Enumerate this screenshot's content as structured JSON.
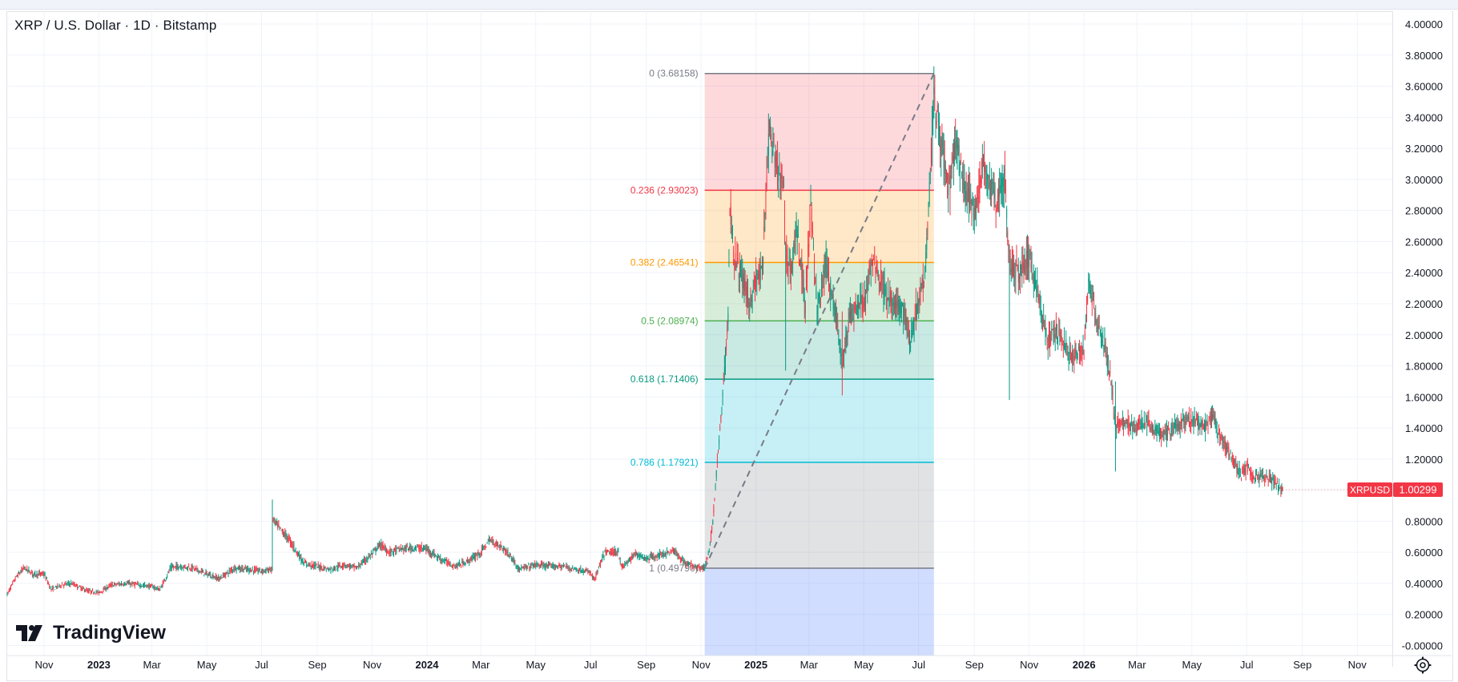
{
  "header": {
    "title": "XRP / U.S. Dollar · 1D · Bitstamp"
  },
  "brand": {
    "name": "TradingView"
  },
  "price_label": {
    "symbol": "XRPUSD",
    "value": "1.00299",
    "color": "#f23645"
  },
  "colors": {
    "up": "#089981",
    "down": "#f23645"
  },
  "chart_data": {
    "type": "line",
    "title": "XRP / U.S. Dollar · 1D · Bitstamp",
    "y_axis": {
      "position": "right",
      "ylim": [
        -0.02,
        4.0
      ],
      "ticks": [
        "4.00000",
        "3.80000",
        "3.60000",
        "3.40000",
        "3.20000",
        "3.00000",
        "2.80000",
        "2.60000",
        "2.40000",
        "2.20000",
        "2.00000",
        "1.80000",
        "1.60000",
        "1.40000",
        "1.20000",
        "1.00000",
        "0.80000",
        "0.60000",
        "0.40000",
        "0.20000",
        "-0.00000"
      ],
      "tick_values": [
        4.0,
        3.8,
        3.6,
        3.4,
        3.2,
        3.0,
        2.8,
        2.6,
        2.4,
        2.2,
        2.0,
        1.8,
        1.6,
        1.4,
        1.2,
        1.0,
        0.8,
        0.6,
        0.4,
        0.2,
        0.0
      ]
    },
    "x_axis": {
      "range": [
        "2022-09-21",
        "2026-12-10"
      ],
      "ticks": [
        {
          "label": "Nov",
          "date": "2022-11-01",
          "bold": false
        },
        {
          "label": "2023",
          "date": "2023-01-01",
          "bold": true
        },
        {
          "label": "Mar",
          "date": "2023-03-01",
          "bold": false
        },
        {
          "label": "May",
          "date": "2023-05-01",
          "bold": false
        },
        {
          "label": "Jul",
          "date": "2023-07-01",
          "bold": false
        },
        {
          "label": "Sep",
          "date": "2023-09-01",
          "bold": false
        },
        {
          "label": "Nov",
          "date": "2023-11-01",
          "bold": false
        },
        {
          "label": "2024",
          "date": "2024-01-01",
          "bold": true
        },
        {
          "label": "Mar",
          "date": "2024-03-01",
          "bold": false
        },
        {
          "label": "May",
          "date": "2024-05-01",
          "bold": false
        },
        {
          "label": "Jul",
          "date": "2024-07-01",
          "bold": false
        },
        {
          "label": "Sep",
          "date": "2024-09-01",
          "bold": false
        },
        {
          "label": "Nov",
          "date": "2024-11-01",
          "bold": false
        },
        {
          "label": "2025",
          "date": "2025-01-01",
          "bold": true
        },
        {
          "label": "Mar",
          "date": "2025-03-01",
          "bold": false
        },
        {
          "label": "May",
          "date": "2025-05-01",
          "bold": false
        },
        {
          "label": "Jul",
          "date": "2025-07-01",
          "bold": false
        },
        {
          "label": "Sep",
          "date": "2025-09-01",
          "bold": false
        },
        {
          "label": "Nov",
          "date": "2025-11-01",
          "bold": false
        },
        {
          "label": "2026",
          "date": "2026-01-01",
          "bold": true
        },
        {
          "label": "Mar",
          "date": "2026-03-01",
          "bold": false
        },
        {
          "label": "May",
          "date": "2026-05-01",
          "bold": false
        },
        {
          "label": "Jul",
          "date": "2026-07-01",
          "bold": false
        },
        {
          "label": "Sep",
          "date": "2026-09-01",
          "bold": false
        },
        {
          "label": "Nov",
          "date": "2026-11-01",
          "bold": false
        }
      ]
    },
    "grid": true,
    "series": [
      {
        "style": "candlestick-approximation",
        "points": [
          [
            "2022-09-21",
            0.33
          ],
          [
            "2022-10-01",
            0.44
          ],
          [
            "2022-10-10",
            0.5
          ],
          [
            "2022-10-20",
            0.46
          ],
          [
            "2022-11-01",
            0.46
          ],
          [
            "2022-11-09",
            0.36
          ],
          [
            "2022-11-20",
            0.39
          ],
          [
            "2022-12-01",
            0.4
          ],
          [
            "2022-12-20",
            0.35
          ],
          [
            "2023-01-01",
            0.34
          ],
          [
            "2023-01-15",
            0.39
          ],
          [
            "2023-02-01",
            0.4
          ],
          [
            "2023-02-15",
            0.39
          ],
          [
            "2023-03-01",
            0.38
          ],
          [
            "2023-03-10",
            0.36
          ],
          [
            "2023-03-22",
            0.5
          ],
          [
            "2023-04-01",
            0.51
          ],
          [
            "2023-04-15",
            0.5
          ],
          [
            "2023-05-01",
            0.46
          ],
          [
            "2023-05-15",
            0.43
          ],
          [
            "2023-06-01",
            0.5
          ],
          [
            "2023-06-15",
            0.49
          ],
          [
            "2023-07-01",
            0.48
          ],
          [
            "2023-07-12",
            0.49
          ],
          [
            "2023-07-13",
            0.82
          ],
          [
            "2023-07-20",
            0.76
          ],
          [
            "2023-08-01",
            0.68
          ],
          [
            "2023-08-17",
            0.53
          ],
          [
            "2023-09-01",
            0.51
          ],
          [
            "2023-09-15",
            0.49
          ],
          [
            "2023-10-01",
            0.52
          ],
          [
            "2023-10-15",
            0.5
          ],
          [
            "2023-11-01",
            0.59
          ],
          [
            "2023-11-10",
            0.65
          ],
          [
            "2023-11-20",
            0.6
          ],
          [
            "2023-12-01",
            0.62
          ],
          [
            "2023-12-20",
            0.63
          ],
          [
            "2024-01-01",
            0.62
          ],
          [
            "2024-01-15",
            0.56
          ],
          [
            "2024-02-01",
            0.51
          ],
          [
            "2024-02-15",
            0.54
          ],
          [
            "2024-03-01",
            0.6
          ],
          [
            "2024-03-11",
            0.68
          ],
          [
            "2024-03-25",
            0.63
          ],
          [
            "2024-04-01",
            0.59
          ],
          [
            "2024-04-13",
            0.49
          ],
          [
            "2024-05-01",
            0.52
          ],
          [
            "2024-05-15",
            0.51
          ],
          [
            "2024-06-01",
            0.51
          ],
          [
            "2024-06-15",
            0.49
          ],
          [
            "2024-07-01",
            0.47
          ],
          [
            "2024-07-05",
            0.42
          ],
          [
            "2024-07-17",
            0.6
          ],
          [
            "2024-08-01",
            0.6
          ],
          [
            "2024-08-05",
            0.5
          ],
          [
            "2024-08-20",
            0.59
          ],
          [
            "2024-09-01",
            0.56
          ],
          [
            "2024-09-15",
            0.58
          ],
          [
            "2024-10-01",
            0.61
          ],
          [
            "2024-10-15",
            0.53
          ],
          [
            "2024-11-01",
            0.5
          ],
          [
            "2024-11-05",
            0.5
          ],
          [
            "2024-11-10",
            0.6
          ],
          [
            "2024-11-14",
            0.8
          ],
          [
            "2024-11-18",
            1.1
          ],
          [
            "2024-11-23",
            1.45
          ],
          [
            "2024-12-01",
            2.1
          ],
          [
            "2024-12-03",
            2.85
          ],
          [
            "2024-12-08",
            2.5
          ],
          [
            "2024-12-15",
            2.4
          ],
          [
            "2024-12-25",
            2.2
          ],
          [
            "2025-01-01",
            2.35
          ],
          [
            "2025-01-08",
            2.4
          ],
          [
            "2025-01-16",
            3.35
          ],
          [
            "2025-01-22",
            3.1
          ],
          [
            "2025-02-01",
            2.95
          ],
          [
            "2025-02-03",
            2.5
          ],
          [
            "2025-02-10",
            2.45
          ],
          [
            "2025-02-15",
            2.7
          ],
          [
            "2025-02-25",
            2.2
          ],
          [
            "2025-03-03",
            2.85
          ],
          [
            "2025-03-10",
            2.15
          ],
          [
            "2025-03-20",
            2.45
          ],
          [
            "2025-04-01",
            2.1
          ],
          [
            "2025-04-07",
            1.8
          ],
          [
            "2025-04-15",
            2.1
          ],
          [
            "2025-04-25",
            2.2
          ],
          [
            "2025-05-01",
            2.2
          ],
          [
            "2025-05-12",
            2.5
          ],
          [
            "2025-05-20",
            2.35
          ],
          [
            "2025-06-01",
            2.2
          ],
          [
            "2025-06-15",
            2.15
          ],
          [
            "2025-06-22",
            1.95
          ],
          [
            "2025-07-01",
            2.25
          ],
          [
            "2025-07-07",
            2.35
          ],
          [
            "2025-07-12",
            2.8
          ],
          [
            "2025-07-18",
            3.55
          ],
          [
            "2025-07-22",
            3.4
          ],
          [
            "2025-08-01",
            3.0
          ],
          [
            "2025-08-05",
            2.95
          ],
          [
            "2025-08-12",
            3.25
          ],
          [
            "2025-08-20",
            2.95
          ],
          [
            "2025-09-01",
            2.8
          ],
          [
            "2025-09-12",
            3.1
          ],
          [
            "2025-09-25",
            2.85
          ],
          [
            "2025-10-05",
            3.0
          ],
          [
            "2025-10-10",
            2.45
          ],
          [
            "2025-10-20",
            2.4
          ],
          [
            "2025-11-01",
            2.5
          ],
          [
            "2025-11-10",
            2.3
          ],
          [
            "2025-11-21",
            1.95
          ],
          [
            "2025-12-01",
            2.05
          ],
          [
            "2025-12-18",
            1.85
          ],
          [
            "2026-01-01",
            1.9
          ],
          [
            "2026-01-06",
            2.35
          ],
          [
            "2026-01-15",
            2.1
          ],
          [
            "2026-01-25",
            1.9
          ],
          [
            "2026-02-01",
            1.65
          ],
          [
            "2026-02-05",
            1.4
          ],
          [
            "2026-02-15",
            1.45
          ],
          [
            "2026-03-01",
            1.4
          ],
          [
            "2026-03-10",
            1.45
          ],
          [
            "2026-03-20",
            1.38
          ],
          [
            "2026-04-01",
            1.35
          ],
          [
            "2026-04-15",
            1.42
          ],
          [
            "2026-05-01",
            1.45
          ],
          [
            "2026-05-15",
            1.4
          ],
          [
            "2026-05-25",
            1.48
          ],
          [
            "2026-06-01",
            1.35
          ],
          [
            "2026-06-15",
            1.2
          ],
          [
            "2026-06-25",
            1.1
          ],
          [
            "2026-07-01",
            1.15
          ],
          [
            "2026-07-10",
            1.07
          ],
          [
            "2026-07-20",
            1.1
          ],
          [
            "2026-08-01",
            1.05
          ],
          [
            "2026-08-10",
            1.00299
          ]
        ]
      }
    ],
    "last_price": {
      "symbol": "XRPUSD",
      "value": 1.00299
    },
    "spikes": [
      {
        "date": "2025-10-10",
        "high": 2.45,
        "low": 1.58
      },
      {
        "date": "2025-02-03",
        "high": 2.6,
        "low": 1.77
      },
      {
        "date": "2025-04-07",
        "high": 2.15,
        "low": 1.61
      },
      {
        "date": "2026-02-05",
        "high": 1.7,
        "low": 1.12
      },
      {
        "date": "2023-07-13",
        "high": 0.94,
        "low": 0.48
      }
    ],
    "fibonacci": {
      "start": {
        "date": "2024-11-05",
        "price": 0.4979
      },
      "end": {
        "date": "2025-07-18",
        "price": 3.68158
      },
      "levels": [
        {
          "ratio": "0",
          "price": "3.68158",
          "label": "0 (3.68158)",
          "value": 3.68158,
          "color": "#787b86",
          "fill": "#f7525f"
        },
        {
          "ratio": "0.236",
          "price": "2.93023",
          "label": "0.236 (2.93023)",
          "value": 2.93023,
          "color": "#f23645",
          "fill": "#ff9800"
        },
        {
          "ratio": "0.382",
          "price": "2.46541",
          "label": "0.382 (2.46541)",
          "value": 2.46541,
          "color": "#ff9800",
          "fill": "#4caf50"
        },
        {
          "ratio": "0.5",
          "price": "2.08974",
          "label": "0.5 (2.08974)",
          "value": 2.08974,
          "color": "#4caf50",
          "fill": "#089981"
        },
        {
          "ratio": "0.618",
          "price": "1.71406",
          "label": "0.618 (1.71406)",
          "value": 1.71406,
          "color": "#089981",
          "fill": "#00bcd4"
        },
        {
          "ratio": "0.786",
          "price": "1.17921",
          "label": "0.786 (1.17921)",
          "value": 1.17921,
          "color": "#00bcd4",
          "fill": "#787b86"
        },
        {
          "ratio": "1",
          "price": "0.49790",
          "label": "1 (0.49790)",
          "value": 0.4979,
          "color": "#787b86",
          "fill": "#2962ff"
        }
      ]
    }
  }
}
